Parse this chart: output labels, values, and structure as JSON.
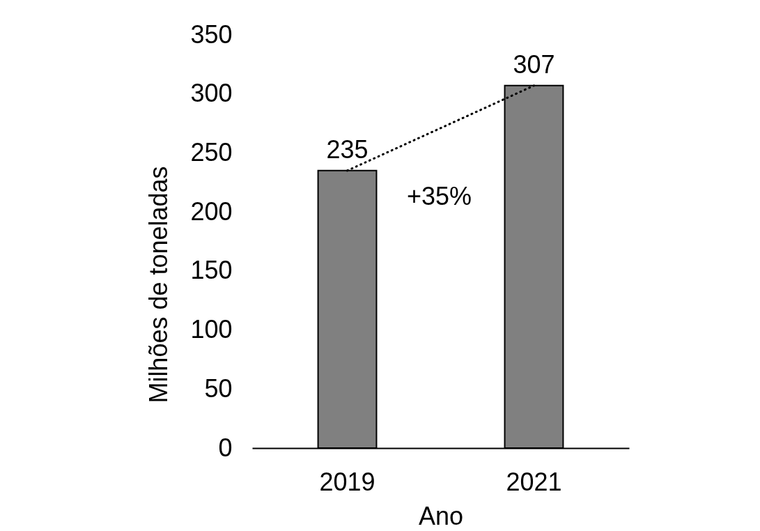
{
  "chart_data": {
    "type": "bar",
    "categories": [
      "2019",
      "2021"
    ],
    "xlabel": "Ano",
    "ylabel": "Milhões de toneladas",
    "series": [
      {
        "color": "#808080",
        "values": [
          235,
          307
        ],
        "value_labels": [
          "235",
          "307"
        ]
      },
      {
        "type": "line",
        "color": "#000000",
        "values": [
          235,
          307
        ],
        "line_style": "dotted",
        "marker": "none"
      }
    ],
    "ylim": [
      0,
      350
    ],
    "yticks": [
      0,
      50,
      100,
      150,
      200,
      250,
      300,
      350
    ],
    "annotations": [
      "+35%"
    ]
  }
}
